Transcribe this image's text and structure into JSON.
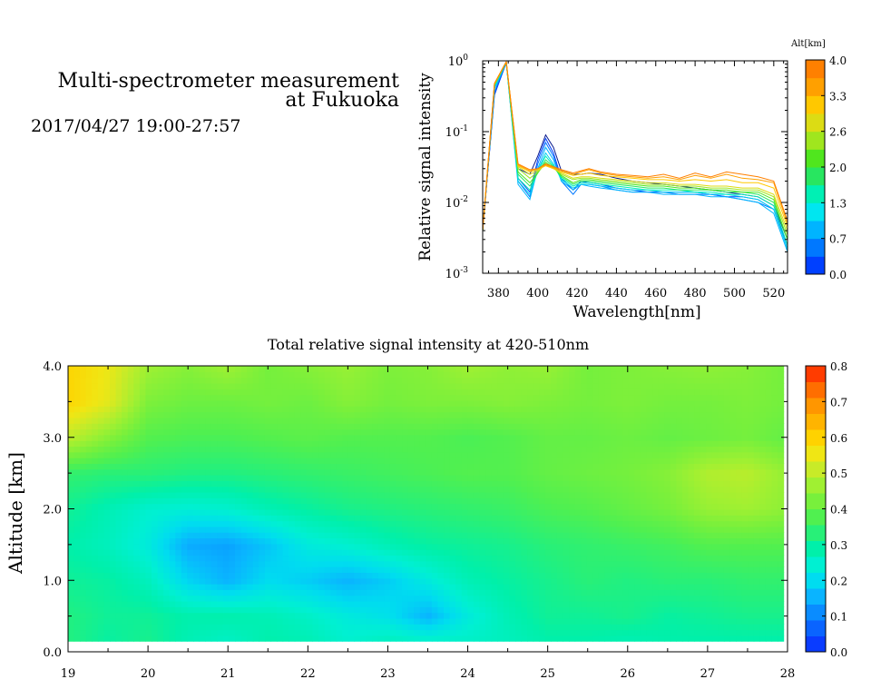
{
  "header": {
    "title_line1": "Multi-spectrometer measurement",
    "title_line2": "at Fukuoka",
    "time_range": "2017/04/27 19:00-27:57"
  },
  "chart_data": [
    {
      "type": "line",
      "xlabel": "Wavelength[nm]",
      "ylabel": "Relative signal intensity",
      "xlim": [
        372,
        527
      ],
      "ylim": [
        0.001,
        1
      ],
      "yscale": "log",
      "xticks": [
        380,
        400,
        420,
        440,
        460,
        480,
        500,
        520
      ],
      "yticks": [
        0.001,
        0.01,
        0.1,
        1
      ],
      "yticklabels": [
        {
          "base": "10",
          "exp": "-3"
        },
        {
          "base": "10",
          "exp": "-2"
        },
        {
          "base": "10",
          "exp": "-1"
        },
        {
          "base": "10",
          "exp": "0"
        }
      ],
      "grid": false,
      "x": [
        372,
        378,
        384,
        390,
        396,
        400,
        404,
        408,
        412,
        418,
        422,
        426,
        432,
        440,
        448,
        456,
        464,
        472,
        480,
        488,
        496,
        504,
        512,
        520,
        527
      ],
      "colorbar": {
        "title": "Alt[km]",
        "ticks": [
          "4.0",
          "3.3",
          "2.6",
          "2.0",
          "1.3",
          "0.7",
          "0.0"
        ],
        "range": [
          0,
          4
        ],
        "colors": [
          "#0040ff",
          "#0078ff",
          "#00b4ff",
          "#00e6f0",
          "#00f0b4",
          "#28e660",
          "#50e61e",
          "#a0e61e",
          "#dcdc14",
          "#ffc800",
          "#ffa000",
          "#ff8000"
        ]
      },
      "series": [
        {
          "alt": 0.0,
          "color": "#0a1a8c",
          "values": [
            0.004,
            0.35,
            0.95,
            0.03,
            0.025,
            0.045,
            0.09,
            0.06,
            0.028,
            0.025,
            0.025,
            0.026,
            0.025,
            0.022,
            0.02,
            0.019,
            0.018,
            0.017,
            0.016,
            0.015,
            0.014,
            0.013,
            0.012,
            0.009,
            0.003
          ]
        },
        {
          "alt": 0.3,
          "color": "#0040ff",
          "values": [
            0.004,
            0.33,
            0.94,
            0.022,
            0.014,
            0.04,
            0.08,
            0.05,
            0.022,
            0.015,
            0.02,
            0.019,
            0.018,
            0.016,
            0.015,
            0.014,
            0.014,
            0.014,
            0.014,
            0.013,
            0.012,
            0.012,
            0.011,
            0.008,
            0.0025
          ]
        },
        {
          "alt": 0.6,
          "color": "#0078ff",
          "values": [
            0.004,
            0.36,
            0.95,
            0.02,
            0.012,
            0.035,
            0.07,
            0.045,
            0.02,
            0.013,
            0.018,
            0.018,
            0.017,
            0.015,
            0.014,
            0.014,
            0.014,
            0.013,
            0.013,
            0.013,
            0.012,
            0.011,
            0.01,
            0.008,
            0.0022
          ]
        },
        {
          "alt": 0.9,
          "color": "#00b4ff",
          "values": [
            0.004,
            0.4,
            0.95,
            0.018,
            0.011,
            0.03,
            0.06,
            0.04,
            0.02,
            0.015,
            0.018,
            0.017,
            0.016,
            0.015,
            0.014,
            0.014,
            0.013,
            0.013,
            0.013,
            0.012,
            0.012,
            0.011,
            0.01,
            0.007,
            0.002
          ]
        },
        {
          "alt": 1.2,
          "color": "#00d2f0",
          "values": [
            0.004,
            0.42,
            0.96,
            0.02,
            0.013,
            0.028,
            0.05,
            0.035,
            0.021,
            0.016,
            0.018,
            0.018,
            0.017,
            0.016,
            0.015,
            0.015,
            0.014,
            0.014,
            0.014,
            0.013,
            0.013,
            0.012,
            0.011,
            0.008,
            0.0022
          ]
        },
        {
          "alt": 1.5,
          "color": "#00f0b4",
          "values": [
            0.004,
            0.44,
            0.96,
            0.022,
            0.015,
            0.027,
            0.045,
            0.033,
            0.022,
            0.017,
            0.019,
            0.019,
            0.018,
            0.017,
            0.016,
            0.015,
            0.015,
            0.015,
            0.014,
            0.014,
            0.013,
            0.013,
            0.012,
            0.009,
            0.0025
          ]
        },
        {
          "alt": 1.8,
          "color": "#28e660",
          "values": [
            0.004,
            0.45,
            0.96,
            0.025,
            0.017,
            0.026,
            0.04,
            0.032,
            0.023,
            0.018,
            0.02,
            0.02,
            0.019,
            0.018,
            0.017,
            0.016,
            0.016,
            0.015,
            0.015,
            0.015,
            0.014,
            0.014,
            0.013,
            0.01,
            0.003
          ]
        },
        {
          "alt": 2.1,
          "color": "#50e61e",
          "values": [
            0.004,
            0.46,
            0.96,
            0.027,
            0.019,
            0.026,
            0.037,
            0.031,
            0.024,
            0.019,
            0.021,
            0.021,
            0.02,
            0.019,
            0.018,
            0.017,
            0.017,
            0.016,
            0.016,
            0.015,
            0.015,
            0.014,
            0.014,
            0.011,
            0.003
          ]
        },
        {
          "alt": 2.4,
          "color": "#a0e61e",
          "values": [
            0.004,
            0.46,
            0.97,
            0.03,
            0.022,
            0.027,
            0.035,
            0.031,
            0.025,
            0.021,
            0.022,
            0.022,
            0.021,
            0.02,
            0.019,
            0.018,
            0.018,
            0.017,
            0.017,
            0.016,
            0.016,
            0.015,
            0.015,
            0.012,
            0.0035
          ]
        },
        {
          "alt": 2.8,
          "color": "#dcdc14",
          "values": [
            0.004,
            0.47,
            0.97,
            0.032,
            0.025,
            0.028,
            0.034,
            0.03,
            0.026,
            0.022,
            0.023,
            0.023,
            0.022,
            0.021,
            0.02,
            0.019,
            0.019,
            0.018,
            0.018,
            0.017,
            0.017,
            0.016,
            0.016,
            0.013,
            0.004
          ]
        },
        {
          "alt": 3.2,
          "color": "#ffc800",
          "values": [
            0.004,
            0.47,
            0.97,
            0.033,
            0.027,
            0.029,
            0.033,
            0.03,
            0.027,
            0.024,
            0.025,
            0.026,
            0.024,
            0.023,
            0.022,
            0.021,
            0.021,
            0.02,
            0.021,
            0.02,
            0.021,
            0.019,
            0.019,
            0.016,
            0.0045
          ]
        },
        {
          "alt": 3.6,
          "color": "#ffa000",
          "values": [
            0.004,
            0.48,
            0.97,
            0.034,
            0.028,
            0.03,
            0.034,
            0.031,
            0.028,
            0.025,
            0.027,
            0.029,
            0.026,
            0.024,
            0.023,
            0.022,
            0.023,
            0.021,
            0.024,
            0.022,
            0.025,
            0.022,
            0.021,
            0.019,
            0.005
          ]
        },
        {
          "alt": 4.0,
          "color": "#ff8000",
          "values": [
            0.004,
            0.48,
            0.97,
            0.035,
            0.029,
            0.03,
            0.035,
            0.032,
            0.029,
            0.026,
            0.028,
            0.03,
            0.027,
            0.025,
            0.024,
            0.023,
            0.025,
            0.022,
            0.026,
            0.023,
            0.027,
            0.025,
            0.023,
            0.02,
            0.0055
          ]
        }
      ]
    },
    {
      "type": "heatmap",
      "title": "Total relative signal intensity at 420-510nm",
      "ylabel": "Altitude [km]",
      "xlabel": "",
      "xlim": [
        19,
        28
      ],
      "ylim": [
        0,
        4
      ],
      "xticks": [
        19,
        20,
        21,
        22,
        23,
        24,
        25,
        26,
        27,
        28
      ],
      "xticklabels": [
        "19",
        "20",
        "21",
        "22",
        "23",
        "24",
        "25",
        "26",
        "27",
        "28"
      ],
      "yticks": [
        0,
        1,
        2,
        3,
        4
      ],
      "yticklabels": [
        "0.0",
        "1.0",
        "2.0",
        "3.0",
        "4.0"
      ],
      "data_extent": {
        "x": [
          19,
          27.95
        ],
        "y": [
          0.15,
          4.0
        ]
      },
      "colorbar": {
        "range": [
          0,
          0.8
        ],
        "ticks": [
          "0.8",
          "0.7",
          "0.6",
          "0.5",
          "0.4",
          "0.3",
          "0.2",
          "0.1",
          "0.0"
        ],
        "colors": [
          "#0a3cff",
          "#0a64ff",
          "#0a8cff",
          "#0ab4ff",
          "#00dcf0",
          "#00f0d2",
          "#00f0aa",
          "#28f078",
          "#50f050",
          "#78f03c",
          "#a0f032",
          "#c8eb28",
          "#f0e614",
          "#ffd200",
          "#ffb400",
          "#ff9600",
          "#ff6e00",
          "#ff3c00"
        ]
      },
      "grid_x": [
        19.05,
        19.5,
        20,
        20.5,
        21,
        21.5,
        22,
        22.5,
        23,
        23.5,
        24,
        24.5,
        25,
        25.5,
        26,
        26.5,
        27,
        27.5,
        27.95
      ],
      "grid_y": [
        0.15,
        0.5,
        1.0,
        1.5,
        2.0,
        2.5,
        3.0,
        3.5,
        4.0
      ],
      "values": [
        [
          0.32,
          0.29,
          0.31,
          0.27,
          0.25,
          0.28,
          0.27,
          0.24,
          0.26,
          0.25,
          0.25,
          0.26,
          0.28,
          0.28,
          0.27,
          0.28,
          0.28,
          0.28,
          0.28
        ],
        [
          0.32,
          0.3,
          0.3,
          0.28,
          0.28,
          0.27,
          0.25,
          0.22,
          0.2,
          0.14,
          0.22,
          0.27,
          0.3,
          0.3,
          0.31,
          0.29,
          0.3,
          0.31,
          0.31
        ],
        [
          0.3,
          0.29,
          0.26,
          0.18,
          0.14,
          0.19,
          0.17,
          0.14,
          0.17,
          0.22,
          0.27,
          0.29,
          0.31,
          0.33,
          0.32,
          0.33,
          0.33,
          0.34,
          0.34
        ],
        [
          0.28,
          0.26,
          0.22,
          0.13,
          0.12,
          0.16,
          0.22,
          0.24,
          0.27,
          0.29,
          0.3,
          0.31,
          0.33,
          0.34,
          0.35,
          0.36,
          0.38,
          0.38,
          0.38
        ],
        [
          0.3,
          0.27,
          0.24,
          0.23,
          0.24,
          0.27,
          0.29,
          0.31,
          0.32,
          0.33,
          0.34,
          0.35,
          0.37,
          0.38,
          0.4,
          0.42,
          0.46,
          0.47,
          0.45
        ],
        [
          0.34,
          0.33,
          0.33,
          0.32,
          0.32,
          0.33,
          0.34,
          0.35,
          0.36,
          0.37,
          0.38,
          0.38,
          0.4,
          0.41,
          0.42,
          0.44,
          0.49,
          0.5,
          0.46
        ],
        [
          0.5,
          0.44,
          0.38,
          0.37,
          0.37,
          0.38,
          0.39,
          0.38,
          0.38,
          0.38,
          0.37,
          0.38,
          0.4,
          0.4,
          0.41,
          0.4,
          0.41,
          0.42,
          0.4
        ],
        [
          0.6,
          0.55,
          0.43,
          0.41,
          0.41,
          0.42,
          0.41,
          0.44,
          0.42,
          0.43,
          0.43,
          0.44,
          0.43,
          0.42,
          0.43,
          0.42,
          0.42,
          0.43,
          0.42
        ],
        [
          0.6,
          0.56,
          0.47,
          0.44,
          0.47,
          0.42,
          0.44,
          0.46,
          0.43,
          0.44,
          0.47,
          0.45,
          0.46,
          0.42,
          0.43,
          0.44,
          0.45,
          0.44,
          0.42
        ]
      ]
    }
  ]
}
